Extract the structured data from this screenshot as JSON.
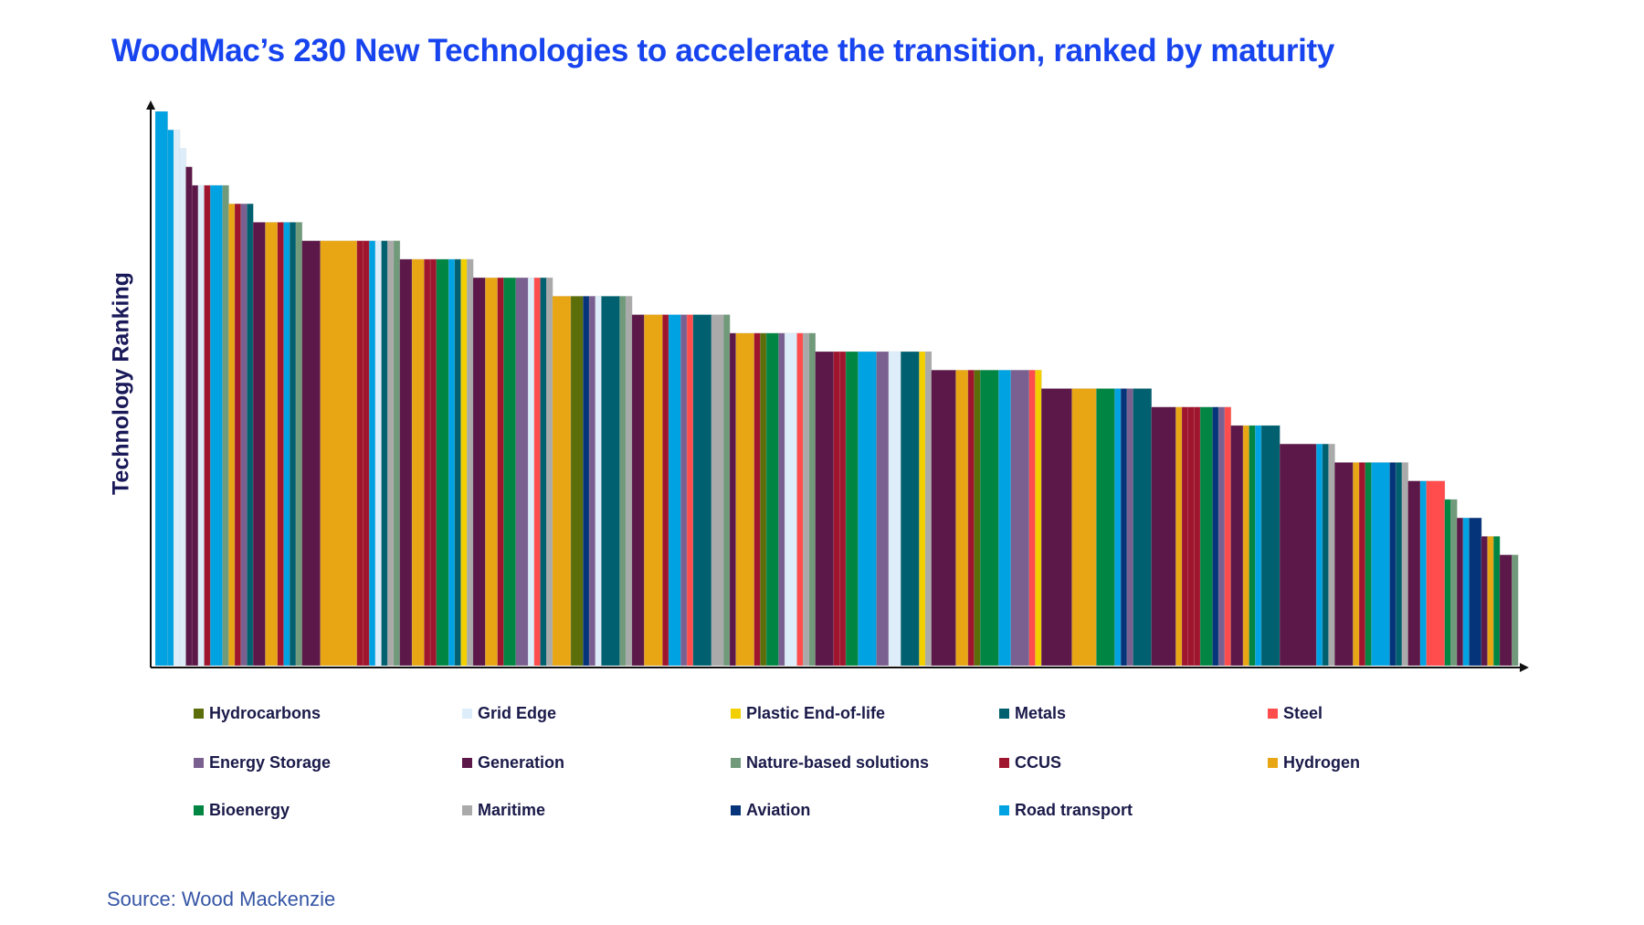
{
  "chart_data": {
    "type": "bar",
    "title": "WoodMac’s 230 New Technologies to accelerate the transition, ranked by maturity",
    "ylabel": "Technology Ranking",
    "xlabel": "",
    "grid": false,
    "legend_position": "bottom",
    "categories": {
      "HC": {
        "name": "Hydrocarbons",
        "color": "#5B6E0A"
      },
      "GE": {
        "name": "Grid Edge",
        "color": "#DDEEFA"
      },
      "PL": {
        "name": "Plastic End-of-life",
        "color": "#F2D000"
      },
      "ME": {
        "name": "Metals",
        "color": "#00606F"
      },
      "ST": {
        "name": "Steel",
        "color": "#FF4C4C"
      },
      "ES": {
        "name": "Energy Storage",
        "color": "#7A6090"
      },
      "GN": {
        "name": "Generation",
        "color": "#5C1848"
      },
      "NB": {
        "name": "Nature-based solutions",
        "color": "#709A7A"
      },
      "CC": {
        "name": "CCUS",
        "color": "#A0152E"
      },
      "HY": {
        "name": "Hydrogen",
        "color": "#E8A615"
      },
      "BI": {
        "name": "Bioenergy",
        "color": "#008542"
      },
      "MA": {
        "name": "Maritime",
        "color": "#AAAAAA"
      },
      "AV": {
        "name": "Aviation",
        "color": "#06347A"
      },
      "RT": {
        "name": "Road transport",
        "color": "#00A2E1"
      }
    },
    "legend_order": [
      "HC",
      "GE",
      "PL",
      "ME",
      "ST",
      "ES",
      "GN",
      "NB",
      "CC",
      "HY",
      "BI",
      "MA",
      "AV",
      "RT"
    ],
    "ylim": [
      0,
      30
    ],
    "levels": [
      {
        "rank": 30,
        "bars": [
          [
            "RT",
            2
          ]
        ]
      },
      {
        "rank": 29,
        "bars": [
          [
            "RT",
            1
          ],
          [
            "GE",
            1
          ]
        ]
      },
      {
        "rank": 28,
        "bars": [
          [
            "GE",
            1
          ]
        ]
      },
      {
        "rank": 27,
        "bars": [
          [
            "GN",
            1
          ]
        ]
      },
      {
        "rank": 26,
        "bars": [
          [
            "GN",
            1
          ],
          [
            "GE",
            1
          ],
          [
            "CC",
            1
          ],
          [
            "RT",
            2
          ],
          [
            "NB",
            1
          ]
        ]
      },
      {
        "rank": 25,
        "bars": [
          [
            "HY",
            1
          ],
          [
            "CC",
            1
          ],
          [
            "ES",
            1
          ],
          [
            "ME",
            1
          ]
        ]
      },
      {
        "rank": 24,
        "bars": [
          [
            "GN",
            2
          ],
          [
            "HY",
            2
          ],
          [
            "CC",
            1
          ],
          [
            "RT",
            1
          ],
          [
            "ME",
            1
          ],
          [
            "NB",
            1
          ]
        ]
      },
      {
        "rank": 23,
        "bars": [
          [
            "GN",
            3
          ],
          [
            "HY",
            6
          ],
          [
            "CC",
            1
          ],
          [
            "CC",
            1
          ],
          [
            "RT",
            1
          ],
          [
            "GE",
            1
          ],
          [
            "ME",
            1
          ],
          [
            "MA",
            1
          ],
          [
            "NB",
            1
          ]
        ]
      },
      {
        "rank": 22,
        "bars": [
          [
            "GN",
            2
          ],
          [
            "HY",
            2
          ],
          [
            "CC",
            1
          ],
          [
            "CC",
            1
          ],
          [
            "BI",
            2
          ],
          [
            "RT",
            1
          ],
          [
            "ME",
            1
          ],
          [
            "PL",
            1
          ],
          [
            "MA",
            1
          ]
        ]
      },
      {
        "rank": 21,
        "bars": [
          [
            "GN",
            2
          ],
          [
            "HY",
            2
          ],
          [
            "CC",
            1
          ],
          [
            "BI",
            2
          ],
          [
            "ES",
            2
          ],
          [
            "GE",
            1
          ],
          [
            "ST",
            1
          ],
          [
            "ME",
            1
          ],
          [
            "MA",
            1
          ]
        ]
      },
      {
        "rank": 20,
        "bars": [
          [
            "HY",
            3
          ],
          [
            "HC",
            2
          ],
          [
            "AV",
            1
          ],
          [
            "ES",
            1
          ],
          [
            "GE",
            1
          ],
          [
            "ME",
            3
          ],
          [
            "NB",
            1
          ],
          [
            "MA",
            1
          ]
        ]
      },
      {
        "rank": 19,
        "bars": [
          [
            "GN",
            2
          ],
          [
            "HY",
            3
          ],
          [
            "CC",
            1
          ],
          [
            "RT",
            2
          ],
          [
            "ES",
            1
          ],
          [
            "ST",
            1
          ],
          [
            "ME",
            3
          ],
          [
            "MA",
            2
          ],
          [
            "NB",
            1
          ]
        ]
      },
      {
        "rank": 18,
        "bars": [
          [
            "GN",
            1
          ],
          [
            "HY",
            3
          ],
          [
            "CC",
            1
          ],
          [
            "HC",
            1
          ],
          [
            "BI",
            2
          ],
          [
            "ES",
            1
          ],
          [
            "GE",
            2
          ],
          [
            "ST",
            1
          ],
          [
            "MA",
            1
          ],
          [
            "NB",
            1
          ]
        ]
      },
      {
        "rank": 17,
        "bars": [
          [
            "GN",
            3
          ],
          [
            "CC",
            1
          ],
          [
            "CC",
            1
          ],
          [
            "BI",
            2
          ],
          [
            "RT",
            3
          ],
          [
            "ES",
            2
          ],
          [
            "GE",
            2
          ],
          [
            "ME",
            3
          ],
          [
            "PL",
            1
          ],
          [
            "MA",
            1
          ]
        ]
      },
      {
        "rank": 16,
        "bars": [
          [
            "GN",
            4
          ],
          [
            "HY",
            2
          ],
          [
            "CC",
            1
          ],
          [
            "HC",
            1
          ],
          [
            "BI",
            3
          ],
          [
            "RT",
            2
          ],
          [
            "ES",
            3
          ],
          [
            "ST",
            1
          ],
          [
            "PL",
            1
          ]
        ]
      },
      {
        "rank": 15,
        "bars": [
          [
            "GN",
            5
          ],
          [
            "HY",
            4
          ],
          [
            "BI",
            3
          ],
          [
            "RT",
            1
          ],
          [
            "AV",
            1
          ],
          [
            "ES",
            1
          ],
          [
            "ME",
            3
          ]
        ]
      },
      {
        "rank": 14,
        "bars": [
          [
            "GN",
            4
          ],
          [
            "HY",
            1
          ],
          [
            "CC",
            1
          ],
          [
            "CC",
            1
          ],
          [
            "CC",
            1
          ],
          [
            "BI",
            2
          ],
          [
            "AV",
            1
          ],
          [
            "ES",
            1
          ],
          [
            "ST",
            1
          ]
        ]
      },
      {
        "rank": 13,
        "bars": [
          [
            "GN",
            2
          ],
          [
            "HY",
            1
          ],
          [
            "BI",
            1
          ],
          [
            "RT",
            1
          ],
          [
            "ME",
            3
          ]
        ]
      },
      {
        "rank": 12,
        "bars": [
          [
            "GN",
            6
          ],
          [
            "RT",
            1
          ],
          [
            "ME",
            1
          ],
          [
            "MA",
            1
          ]
        ]
      },
      {
        "rank": 11,
        "bars": [
          [
            "GN",
            3
          ],
          [
            "HY",
            1
          ],
          [
            "CC",
            1
          ],
          [
            "BI",
            1
          ],
          [
            "RT",
            3
          ],
          [
            "AV",
            1
          ],
          [
            "ME",
            1
          ],
          [
            "MA",
            1
          ]
        ]
      },
      {
        "rank": 10,
        "bars": [
          [
            "GN",
            2
          ],
          [
            "RT",
            1
          ],
          [
            "ST",
            3
          ]
        ]
      },
      {
        "rank": 9,
        "bars": [
          [
            "BI",
            1
          ],
          [
            "NB",
            1
          ]
        ]
      },
      {
        "rank": 8,
        "bars": [
          [
            "GN",
            1
          ],
          [
            "RT",
            1
          ],
          [
            "AV",
            2
          ]
        ]
      },
      {
        "rank": 7,
        "bars": [
          [
            "GN",
            1
          ],
          [
            "HY",
            1
          ],
          [
            "BI",
            1
          ]
        ]
      },
      {
        "rank": 6,
        "bars": [
          [
            "GN",
            2
          ],
          [
            "NB",
            1
          ]
        ]
      }
    ]
  },
  "source": "Source: Wood Mackenzie"
}
